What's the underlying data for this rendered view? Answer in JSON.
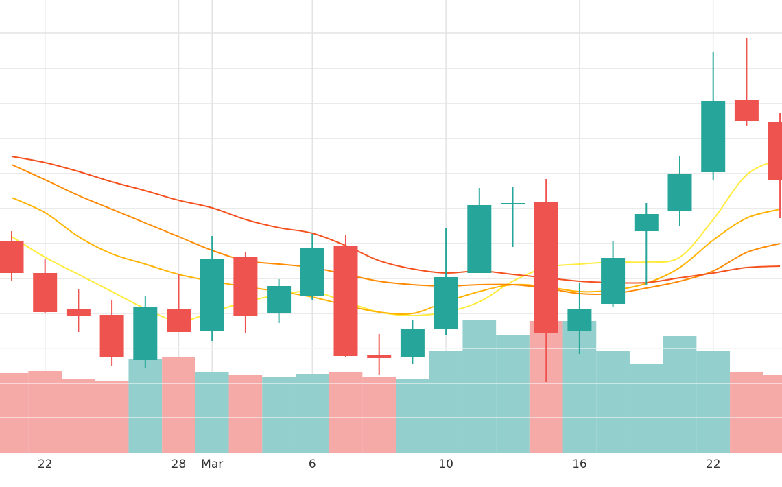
{
  "chart_data": {
    "type": "candlestick",
    "categories": [
      null,
      "22",
      null,
      null,
      null,
      "28",
      "Mar",
      null,
      null,
      "6",
      null,
      null,
      null,
      "10",
      null,
      null,
      null,
      "16",
      null,
      null,
      null,
      "22",
      null,
      null
    ],
    "open": [
      308,
      262,
      209,
      201,
      135,
      210,
      177,
      286,
      203,
      228,
      302,
      142,
      139,
      181,
      262,
      363,
      365,
      178,
      217,
      323,
      353,
      409,
      514,
      482
    ],
    "high": [
      323,
      282,
      238,
      223,
      228,
      260,
      316,
      293,
      253,
      319,
      318,
      173,
      194,
      328,
      386,
      388,
      399,
      248,
      308,
      364,
      433,
      584,
      605,
      495
    ],
    "low": [
      250,
      203,
      176,
      127,
      123,
      176,
      163,
      175,
      189,
      223,
      139,
      113,
      129,
      172,
      262,
      300,
      103,
      144,
      213,
      244,
      330,
      397,
      476,
      342
    ],
    "close": [
      262,
      205,
      199,
      140,
      213,
      176,
      283,
      200,
      243,
      299,
      141,
      138,
      180,
      256,
      361,
      364,
      175,
      210,
      284,
      348,
      407,
      513,
      484,
      398
    ],
    "up_color": "#26a69a",
    "down_color": "#ef5350",
    "volume": {
      "values": [
        116,
        119,
        108,
        105,
        136,
        140,
        118,
        113,
        111,
        115,
        117,
        110,
        107,
        148,
        193,
        171,
        192,
        192,
        149,
        129,
        170,
        148,
        118,
        113
      ],
      "up_color": "#92cfcd",
      "down_color": "#f5aaa7",
      "axis": "y2"
    },
    "series": [
      {
        "color": "#ffeb3b",
        "values": [
          315,
          285,
          260,
          235,
          210,
          192,
          205,
          220,
          230,
          235,
          220,
          205,
          200,
          205,
          220,
          250,
          270,
          275,
          278,
          278,
          285,
          340,
          405,
          428
        ]
      },
      {
        "color": "#ffb300",
        "values": [
          372,
          350,
          315,
          290,
          275,
          260,
          250,
          242,
          235,
          227,
          215,
          205,
          203,
          220,
          235,
          245,
          242,
          235,
          237,
          247,
          270,
          310,
          342,
          355
        ]
      },
      {
        "color": "#ff8a00",
        "values": [
          420,
          398,
          375,
          355,
          335,
          315,
          295,
          280,
          275,
          270,
          260,
          250,
          245,
          243,
          245,
          245,
          240,
          232,
          232,
          240,
          250,
          265,
          292,
          305
        ]
      },
      {
        "color": "#f4511e",
        "values": [
          432,
          423,
          410,
          395,
          382,
          368,
          357,
          340,
          328,
          320,
          302,
          280,
          268,
          262,
          265,
          260,
          255,
          250,
          248,
          248,
          255,
          262,
          270,
          272
        ]
      }
    ],
    "ylim": [
      0,
      660
    ],
    "y2lim": [
      0,
      660
    ],
    "yticks": [
      51,
      101,
      152,
      203,
      254,
      305,
      356,
      407,
      458,
      509,
      560,
      612
    ],
    "grid": true
  }
}
